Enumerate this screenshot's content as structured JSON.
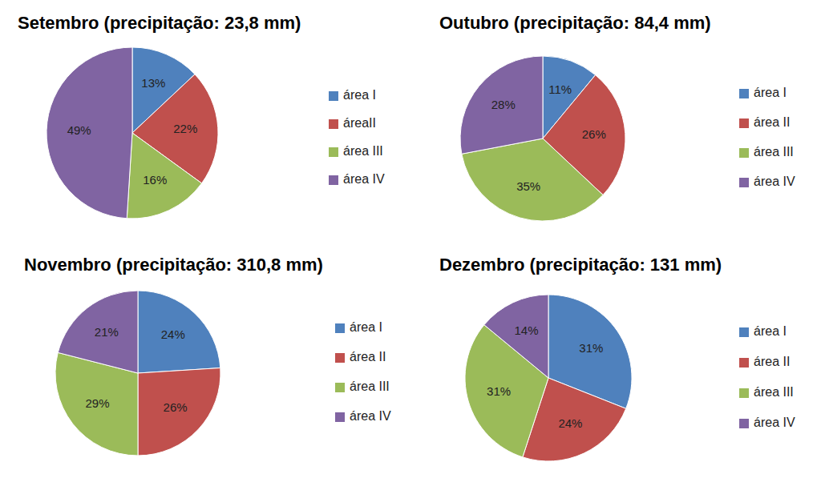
{
  "chart_data": [
    {
      "type": "pie",
      "title": "Setembro (precipitação: 23,8 mm)",
      "categories": [
        "área I",
        "áreaII",
        "área III",
        "área IV"
      ],
      "values": [
        13,
        22,
        16,
        49
      ],
      "value_labels": [
        "13%",
        "22%",
        "16%",
        "49%"
      ],
      "colors": [
        "#4f81bd",
        "#c0504d",
        "#9bbb59",
        "#8064a2"
      ],
      "data_labels": true,
      "legend": "right"
    },
    {
      "type": "pie",
      "title": "Outubro (precipitação: 84,4 mm)",
      "categories": [
        "área I",
        "área II",
        "área III",
        "área IV"
      ],
      "values": [
        11,
        26,
        35,
        28
      ],
      "value_labels": [
        "11%",
        "26%",
        "35%",
        "28%"
      ],
      "colors": [
        "#4f81bd",
        "#c0504d",
        "#9bbb59",
        "#8064a2"
      ],
      "data_labels": true,
      "legend": "right"
    },
    {
      "type": "pie",
      "title": "Novembro (precipitação: 310,8 mm)",
      "categories": [
        "área I",
        "área II",
        "área III",
        "área IV"
      ],
      "values": [
        24,
        26,
        29,
        21
      ],
      "value_labels": [
        "24%",
        "26%",
        "29%",
        "21%"
      ],
      "colors": [
        "#4f81bd",
        "#c0504d",
        "#9bbb59",
        "#8064a2"
      ],
      "data_labels": true,
      "legend": "right"
    },
    {
      "type": "pie",
      "title": "Dezembro (precipitação: 131 mm)",
      "categories": [
        "área I",
        "área II",
        "área III",
        "área IV"
      ],
      "values": [
        31,
        24,
        31,
        14
      ],
      "value_labels": [
        "31%",
        "24%",
        "31%",
        "14%"
      ],
      "colors": [
        "#4f81bd",
        "#c0504d",
        "#9bbb59",
        "#8064a2"
      ],
      "data_labels": true,
      "legend": "right"
    }
  ]
}
